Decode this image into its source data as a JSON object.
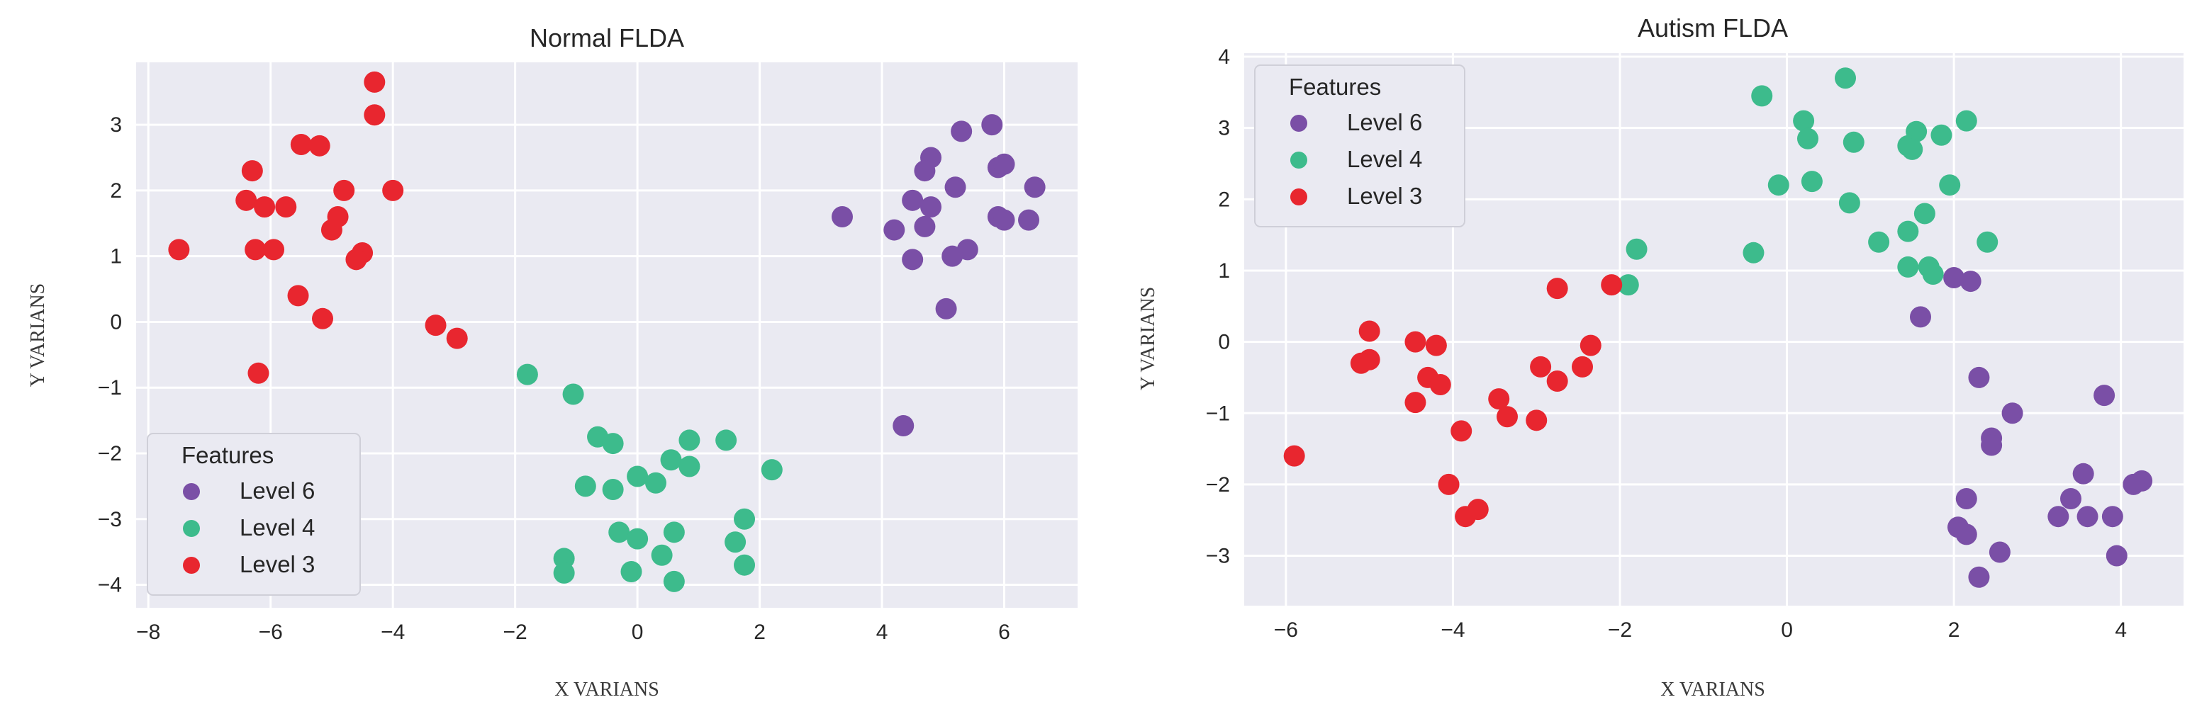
{
  "chart_data": [
    {
      "type": "scatter",
      "title": "Normal FLDA",
      "xlabel": "X VARIANS",
      "ylabel": "Y VARIANS",
      "xlim": [
        -8.2,
        7.2
      ],
      "ylim": [
        -4.35,
        3.95
      ],
      "xticks": [
        -8,
        -6,
        -4,
        -2,
        0,
        2,
        4,
        6
      ],
      "yticks": [
        -4,
        -3,
        -2,
        -1,
        0,
        1,
        2,
        3
      ],
      "grid": true,
      "legend": {
        "title": "Features",
        "position": "bottom-left"
      },
      "series": [
        {
          "name": "Level 6",
          "color": "#7a4fa6",
          "points": [
            [
              5.8,
              3.0
            ],
            [
              5.3,
              2.9
            ],
            [
              4.8,
              2.5
            ],
            [
              4.7,
              2.3
            ],
            [
              5.9,
              2.35
            ],
            [
              6.0,
              2.4
            ],
            [
              5.2,
              2.05
            ],
            [
              6.5,
              2.05
            ],
            [
              4.5,
              1.85
            ],
            [
              4.8,
              1.75
            ],
            [
              4.7,
              1.45
            ],
            [
              4.2,
              1.4
            ],
            [
              3.35,
              1.6
            ],
            [
              5.9,
              1.6
            ],
            [
              6.0,
              1.55
            ],
            [
              6.4,
              1.55
            ],
            [
              5.4,
              1.1
            ],
            [
              5.15,
              1.0
            ],
            [
              4.5,
              0.95
            ],
            [
              5.05,
              0.2
            ],
            [
              4.35,
              -1.58
            ]
          ]
        },
        {
          "name": "Level 4",
          "color": "#3dbb8c",
          "points": [
            [
              -1.8,
              -0.8
            ],
            [
              -1.05,
              -1.1
            ],
            [
              -0.65,
              -1.75
            ],
            [
              -0.4,
              -1.85
            ],
            [
              -0.85,
              -2.5
            ],
            [
              -0.4,
              -2.55
            ],
            [
              0.0,
              -2.35
            ],
            [
              0.3,
              -2.45
            ],
            [
              0.55,
              -2.1
            ],
            [
              0.85,
              -2.2
            ],
            [
              0.85,
              -1.8
            ],
            [
              1.45,
              -1.8
            ],
            [
              2.2,
              -2.25
            ],
            [
              1.75,
              -3.0
            ],
            [
              0.6,
              -3.2
            ],
            [
              -0.3,
              -3.2
            ],
            [
              0.0,
              -3.3
            ],
            [
              1.6,
              -3.35
            ],
            [
              0.4,
              -3.55
            ],
            [
              -1.2,
              -3.6
            ],
            [
              -1.2,
              -3.82
            ],
            [
              -0.1,
              -3.8
            ],
            [
              1.75,
              -3.7
            ],
            [
              0.6,
              -3.95
            ]
          ]
        },
        {
          "name": "Level 3",
          "color": "#e8262f",
          "points": [
            [
              -4.3,
              3.65
            ],
            [
              -4.3,
              3.15
            ],
            [
              -5.5,
              2.7
            ],
            [
              -5.2,
              2.68
            ],
            [
              -6.3,
              2.3
            ],
            [
              -4.8,
              2.0
            ],
            [
              -4.0,
              2.0
            ],
            [
              -6.4,
              1.85
            ],
            [
              -6.1,
              1.75
            ],
            [
              -5.75,
              1.75
            ],
            [
              -4.9,
              1.6
            ],
            [
              -5.0,
              1.4
            ],
            [
              -7.5,
              1.1
            ],
            [
              -6.25,
              1.1
            ],
            [
              -5.95,
              1.1
            ],
            [
              -4.5,
              1.05
            ],
            [
              -4.6,
              0.95
            ],
            [
              -5.55,
              0.4
            ],
            [
              -5.15,
              0.05
            ],
            [
              -3.3,
              -0.05
            ],
            [
              -2.95,
              -0.25
            ],
            [
              -6.2,
              -0.78
            ]
          ]
        }
      ]
    },
    {
      "type": "scatter",
      "title": "Autism FLDA",
      "xlabel": "X VARIANS",
      "ylabel": "Y VARIANS",
      "xlim": [
        -6.5,
        4.75
      ],
      "ylim": [
        -3.7,
        4.05
      ],
      "xticks": [
        -6,
        -4,
        -2,
        0,
        2,
        4
      ],
      "yticks": [
        -3,
        -2,
        -1,
        0,
        1,
        2,
        3,
        4
      ],
      "grid": true,
      "legend": {
        "title": "Features",
        "position": "top-left"
      },
      "series": [
        {
          "name": "Level 6",
          "color": "#7a4fa6",
          "points": [
            [
              2.0,
              0.9
            ],
            [
              2.2,
              0.85
            ],
            [
              1.6,
              0.35
            ],
            [
              2.3,
              -0.5
            ],
            [
              3.8,
              -0.75
            ],
            [
              2.7,
              -1.0
            ],
            [
              2.45,
              -1.35
            ],
            [
              2.45,
              -1.45
            ],
            [
              3.55,
              -1.85
            ],
            [
              4.25,
              -1.95
            ],
            [
              4.15,
              -2.0
            ],
            [
              3.4,
              -2.2
            ],
            [
              2.15,
              -2.2
            ],
            [
              3.25,
              -2.45
            ],
            [
              3.6,
              -2.45
            ],
            [
              3.9,
              -2.45
            ],
            [
              2.05,
              -2.6
            ],
            [
              2.15,
              -2.7
            ],
            [
              2.55,
              -2.95
            ],
            [
              3.95,
              -3.0
            ],
            [
              2.3,
              -3.3
            ]
          ]
        },
        {
          "name": "Level 4",
          "color": "#3dbb8c",
          "points": [
            [
              0.7,
              3.7
            ],
            [
              -0.3,
              3.45
            ],
            [
              0.2,
              3.1
            ],
            [
              2.15,
              3.1
            ],
            [
              1.55,
              2.95
            ],
            [
              1.85,
              2.9
            ],
            [
              0.25,
              2.85
            ],
            [
              0.8,
              2.8
            ],
            [
              1.45,
              2.75
            ],
            [
              1.5,
              2.7
            ],
            [
              0.3,
              2.25
            ],
            [
              1.95,
              2.2
            ],
            [
              -0.1,
              2.2
            ],
            [
              0.75,
              1.95
            ],
            [
              1.65,
              1.8
            ],
            [
              1.45,
              1.55
            ],
            [
              1.1,
              1.4
            ],
            [
              2.4,
              1.4
            ],
            [
              -1.8,
              1.3
            ],
            [
              -0.4,
              1.25
            ],
            [
              1.45,
              1.05
            ],
            [
              1.7,
              1.05
            ],
            [
              1.75,
              0.95
            ],
            [
              -1.9,
              0.8
            ]
          ]
        },
        {
          "name": "Level 3",
          "color": "#e8262f",
          "points": [
            [
              -2.1,
              0.8
            ],
            [
              -2.75,
              0.75
            ],
            [
              -5.0,
              0.15
            ],
            [
              -4.45,
              0.0
            ],
            [
              -4.2,
              -0.05
            ],
            [
              -2.35,
              -0.05
            ],
            [
              -5.0,
              -0.25
            ],
            [
              -5.1,
              -0.3
            ],
            [
              -2.95,
              -0.35
            ],
            [
              -2.45,
              -0.35
            ],
            [
              -4.3,
              -0.5
            ],
            [
              -4.15,
              -0.6
            ],
            [
              -2.75,
              -0.55
            ],
            [
              -3.45,
              -0.8
            ],
            [
              -4.45,
              -0.85
            ],
            [
              -3.35,
              -1.05
            ],
            [
              -3.0,
              -1.1
            ],
            [
              -3.9,
              -1.25
            ],
            [
              -5.9,
              -1.6
            ],
            [
              -4.05,
              -2.0
            ],
            [
              -3.7,
              -2.35
            ],
            [
              -3.85,
              -2.45
            ]
          ]
        }
      ]
    }
  ]
}
